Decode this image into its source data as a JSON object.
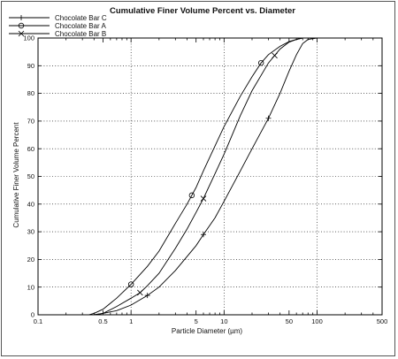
{
  "chart_data": {
    "type": "line",
    "title": "Cumulative Finer Volume Percent vs. Diameter",
    "xlabel": "Particle Diameter (µm)",
    "ylabel": "Cumulative Finer Volume Percent",
    "x_scale": "log",
    "xlim": [
      0.1,
      500
    ],
    "ylim": [
      0,
      100
    ],
    "x_ticks": [
      0.1,
      0.5,
      1,
      5,
      10,
      50,
      100,
      500
    ],
    "x_tick_labels": [
      "0.1",
      "0.5",
      "1",
      "5",
      "10",
      "50",
      "100",
      "500"
    ],
    "x_gridlines": [
      1,
      10,
      100
    ],
    "y_ticks": [
      0,
      10,
      20,
      30,
      40,
      50,
      60,
      70,
      80,
      90,
      100
    ],
    "y_tick_labels": [
      "0",
      "10",
      "20",
      "30",
      "40",
      "50",
      "60",
      "70",
      "80",
      "90",
      "100"
    ],
    "grid": true,
    "legend_position": "top-left",
    "series": [
      {
        "name": "Chocolate Bar C",
        "marker": "plus",
        "x": [
          0.4,
          0.5,
          0.7,
          1,
          1.5,
          2,
          3,
          5,
          6,
          8,
          10,
          15,
          20,
          30,
          40,
          50,
          60,
          70,
          80,
          100,
          200,
          500
        ],
        "y": [
          0,
          0.5,
          1.5,
          3.5,
          7,
          10,
          16,
          25,
          29,
          35,
          41,
          52,
          60,
          71,
          80,
          88,
          94,
          98,
          99.5,
          100,
          100,
          100
        ]
      },
      {
        "name": "Chocolate Bar A",
        "marker": "circle",
        "x": [
          0.35,
          0.4,
          0.5,
          0.7,
          1,
          1.5,
          2,
          3,
          4,
          5,
          6,
          8,
          10,
          15,
          20,
          25,
          30,
          40,
          50,
          60,
          70,
          80,
          100,
          200,
          500
        ],
        "y": [
          0,
          0.5,
          2,
          6,
          11,
          17.5,
          23,
          33,
          40,
          46,
          52,
          61,
          68,
          79,
          86,
          91,
          94,
          97,
          98.7,
          99.5,
          100,
          100,
          100,
          100,
          100
        ]
      },
      {
        "name": "Chocolate Bar B",
        "marker": "x",
        "x": [
          0.4,
          0.5,
          0.7,
          1,
          1.25,
          1.5,
          2,
          3,
          4,
          5,
          6,
          8,
          10,
          15,
          20,
          30,
          40,
          50,
          60,
          70,
          80,
          100,
          200,
          500
        ],
        "y": [
          0,
          0.5,
          3,
          6,
          8,
          10.5,
          15,
          24,
          31,
          37,
          42,
          51,
          58,
          72,
          81,
          91,
          96,
          98.5,
          99.5,
          100,
          100,
          100,
          100,
          100
        ]
      }
    ],
    "marker_points": [
      {
        "series": 0,
        "x": [
          1.5,
          6,
          30
        ]
      },
      {
        "series": 1,
        "x": [
          1,
          4.5,
          25
        ]
      },
      {
        "series": 2,
        "x": [
          1.25,
          6,
          35
        ]
      }
    ]
  }
}
